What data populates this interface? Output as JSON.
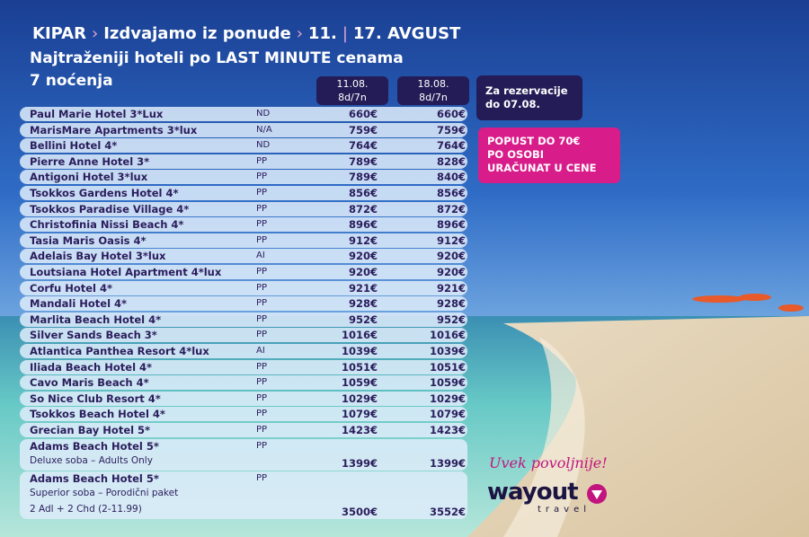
{
  "header": {
    "title_parts": [
      "KIPAR",
      "›",
      "Izdvajamo iz ponude",
      "›",
      "11.",
      "|",
      "17. AVGUST"
    ],
    "subtitle": "Najtraženiji hoteli po LAST MINUTE cenama",
    "nights": "7 noćenja"
  },
  "table": {
    "columns": [
      [
        "11.08.",
        "8d/7n"
      ],
      [
        "18.08.",
        "8d/7n"
      ]
    ],
    "rows": [
      {
        "name": "Paul Marie Hotel 3*Lux",
        "board": "ND",
        "prices": [
          "660€",
          "660€"
        ]
      },
      {
        "name": "MarisMare Apartments 3*lux",
        "board": "N/A",
        "prices": [
          "759€",
          "759€"
        ]
      },
      {
        "name": "Bellini Hotel 4*",
        "board": "ND",
        "prices": [
          "764€",
          "764€"
        ]
      },
      {
        "name": "Pierre Anne Hotel 3*",
        "board": "PP",
        "prices": [
          "789€",
          "828€"
        ]
      },
      {
        "name": "Antigoni Hotel 3*lux",
        "board": "PP",
        "prices": [
          "789€",
          "840€"
        ]
      },
      {
        "name": "Tsokkos Gardens Hotel 4*",
        "board": "PP",
        "prices": [
          "856€",
          "856€"
        ]
      },
      {
        "name": "Tsokkos Paradise Village 4*",
        "board": "PP",
        "prices": [
          "872€",
          "872€"
        ]
      },
      {
        "name": "Christofinia Nissi Beach 4*",
        "board": "PP",
        "prices": [
          "896€",
          "896€"
        ]
      },
      {
        "name": "Tasia Maris Oasis 4*",
        "board": "PP",
        "prices": [
          "912€",
          "912€"
        ]
      },
      {
        "name": "Adelais Bay Hotel 3*lux",
        "board": "AI",
        "prices": [
          "920€",
          "920€"
        ]
      },
      {
        "name": "Loutsiana Hotel Apartment 4*lux",
        "board": "PP",
        "prices": [
          "920€",
          "920€"
        ]
      },
      {
        "name": "Corfu Hotel 4*",
        "board": "PP",
        "prices": [
          "921€",
          "921€"
        ]
      },
      {
        "name": "Mandali Hotel 4*",
        "board": "PP",
        "prices": [
          "928€",
          "928€"
        ]
      },
      {
        "name": "Marlita Beach Hotel 4*",
        "board": "PP",
        "prices": [
          "952€",
          "952€"
        ]
      },
      {
        "name": "Silver Sands Beach 3*",
        "board": "PP",
        "prices": [
          "1016€",
          "1016€"
        ]
      },
      {
        "name": "Atlantica Panthea Resort 4*lux",
        "board": "AI",
        "prices": [
          "1039€",
          "1039€"
        ]
      },
      {
        "name": "Iliada Beach Hotel 4*",
        "board": "PP",
        "prices": [
          "1051€",
          "1051€"
        ]
      },
      {
        "name": "Cavo Maris Beach 4*",
        "board": "PP",
        "prices": [
          "1059€",
          "1059€"
        ]
      },
      {
        "name": "So Nice Club Resort 4*",
        "board": "PP",
        "prices": [
          "1029€",
          "1029€"
        ]
      },
      {
        "name": "Tsokkos Beach Hotel 4*",
        "board": "PP",
        "prices": [
          "1079€",
          "1079€"
        ]
      },
      {
        "name": "Grecian Bay Hotel 5*",
        "board": "PP",
        "prices": [
          "1423€",
          "1423€"
        ]
      },
      {
        "name": "Adams Beach Hotel 5*",
        "board": "PP",
        "details": [
          "Deluxe soba – Adults Only"
        ],
        "prices": [
          "1399€",
          "1399€"
        ]
      },
      {
        "name": "Adams Beach Hotel 5*",
        "board": "PP",
        "details": [
          "Superior soba – Porodični paket",
          "2 Adl + 2 Chd (2-11.99)"
        ],
        "prices": [
          "3500€",
          "3552€"
        ]
      }
    ]
  },
  "side": {
    "reservation": [
      "Za rezervacije",
      "do 07.08."
    ],
    "discount": [
      "POPUST DO 70€",
      "PO OSOBI",
      "URAČUNAT U CENE"
    ]
  },
  "brand": {
    "slogan": "Uvek povoljnije!",
    "logo": "wayout",
    "sub": "travel"
  }
}
